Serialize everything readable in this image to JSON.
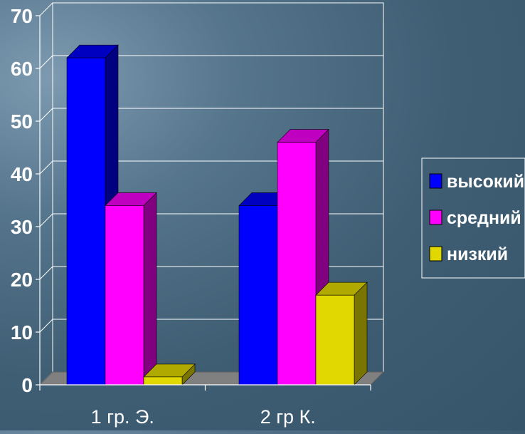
{
  "chart_data": {
    "type": "bar",
    "categories": [
      "1 гр. Э.",
      "2 гр К."
    ],
    "series": [
      {
        "name": "высокий",
        "values": [
          62,
          34
        ],
        "color": "#0000ff",
        "side": "#000080",
        "top": "#0000c0"
      },
      {
        "name": "средний",
        "values": [
          34,
          46
        ],
        "color": "#ff00ff",
        "side": "#800080",
        "top": "#c000c0"
      },
      {
        "name": "низкий",
        "values": [
          1.5,
          17
        ],
        "color": "#e0d800",
        "side": "#7a7500",
        "top": "#b0aa00"
      }
    ],
    "ylim": [
      0,
      70
    ],
    "yticks": [
      0,
      10,
      20,
      30,
      40,
      50,
      60,
      70
    ],
    "grid": true,
    "legend": "right",
    "colors": {
      "grid": "#ffffff",
      "floor": "#808080",
      "text": "#ffffff"
    }
  }
}
